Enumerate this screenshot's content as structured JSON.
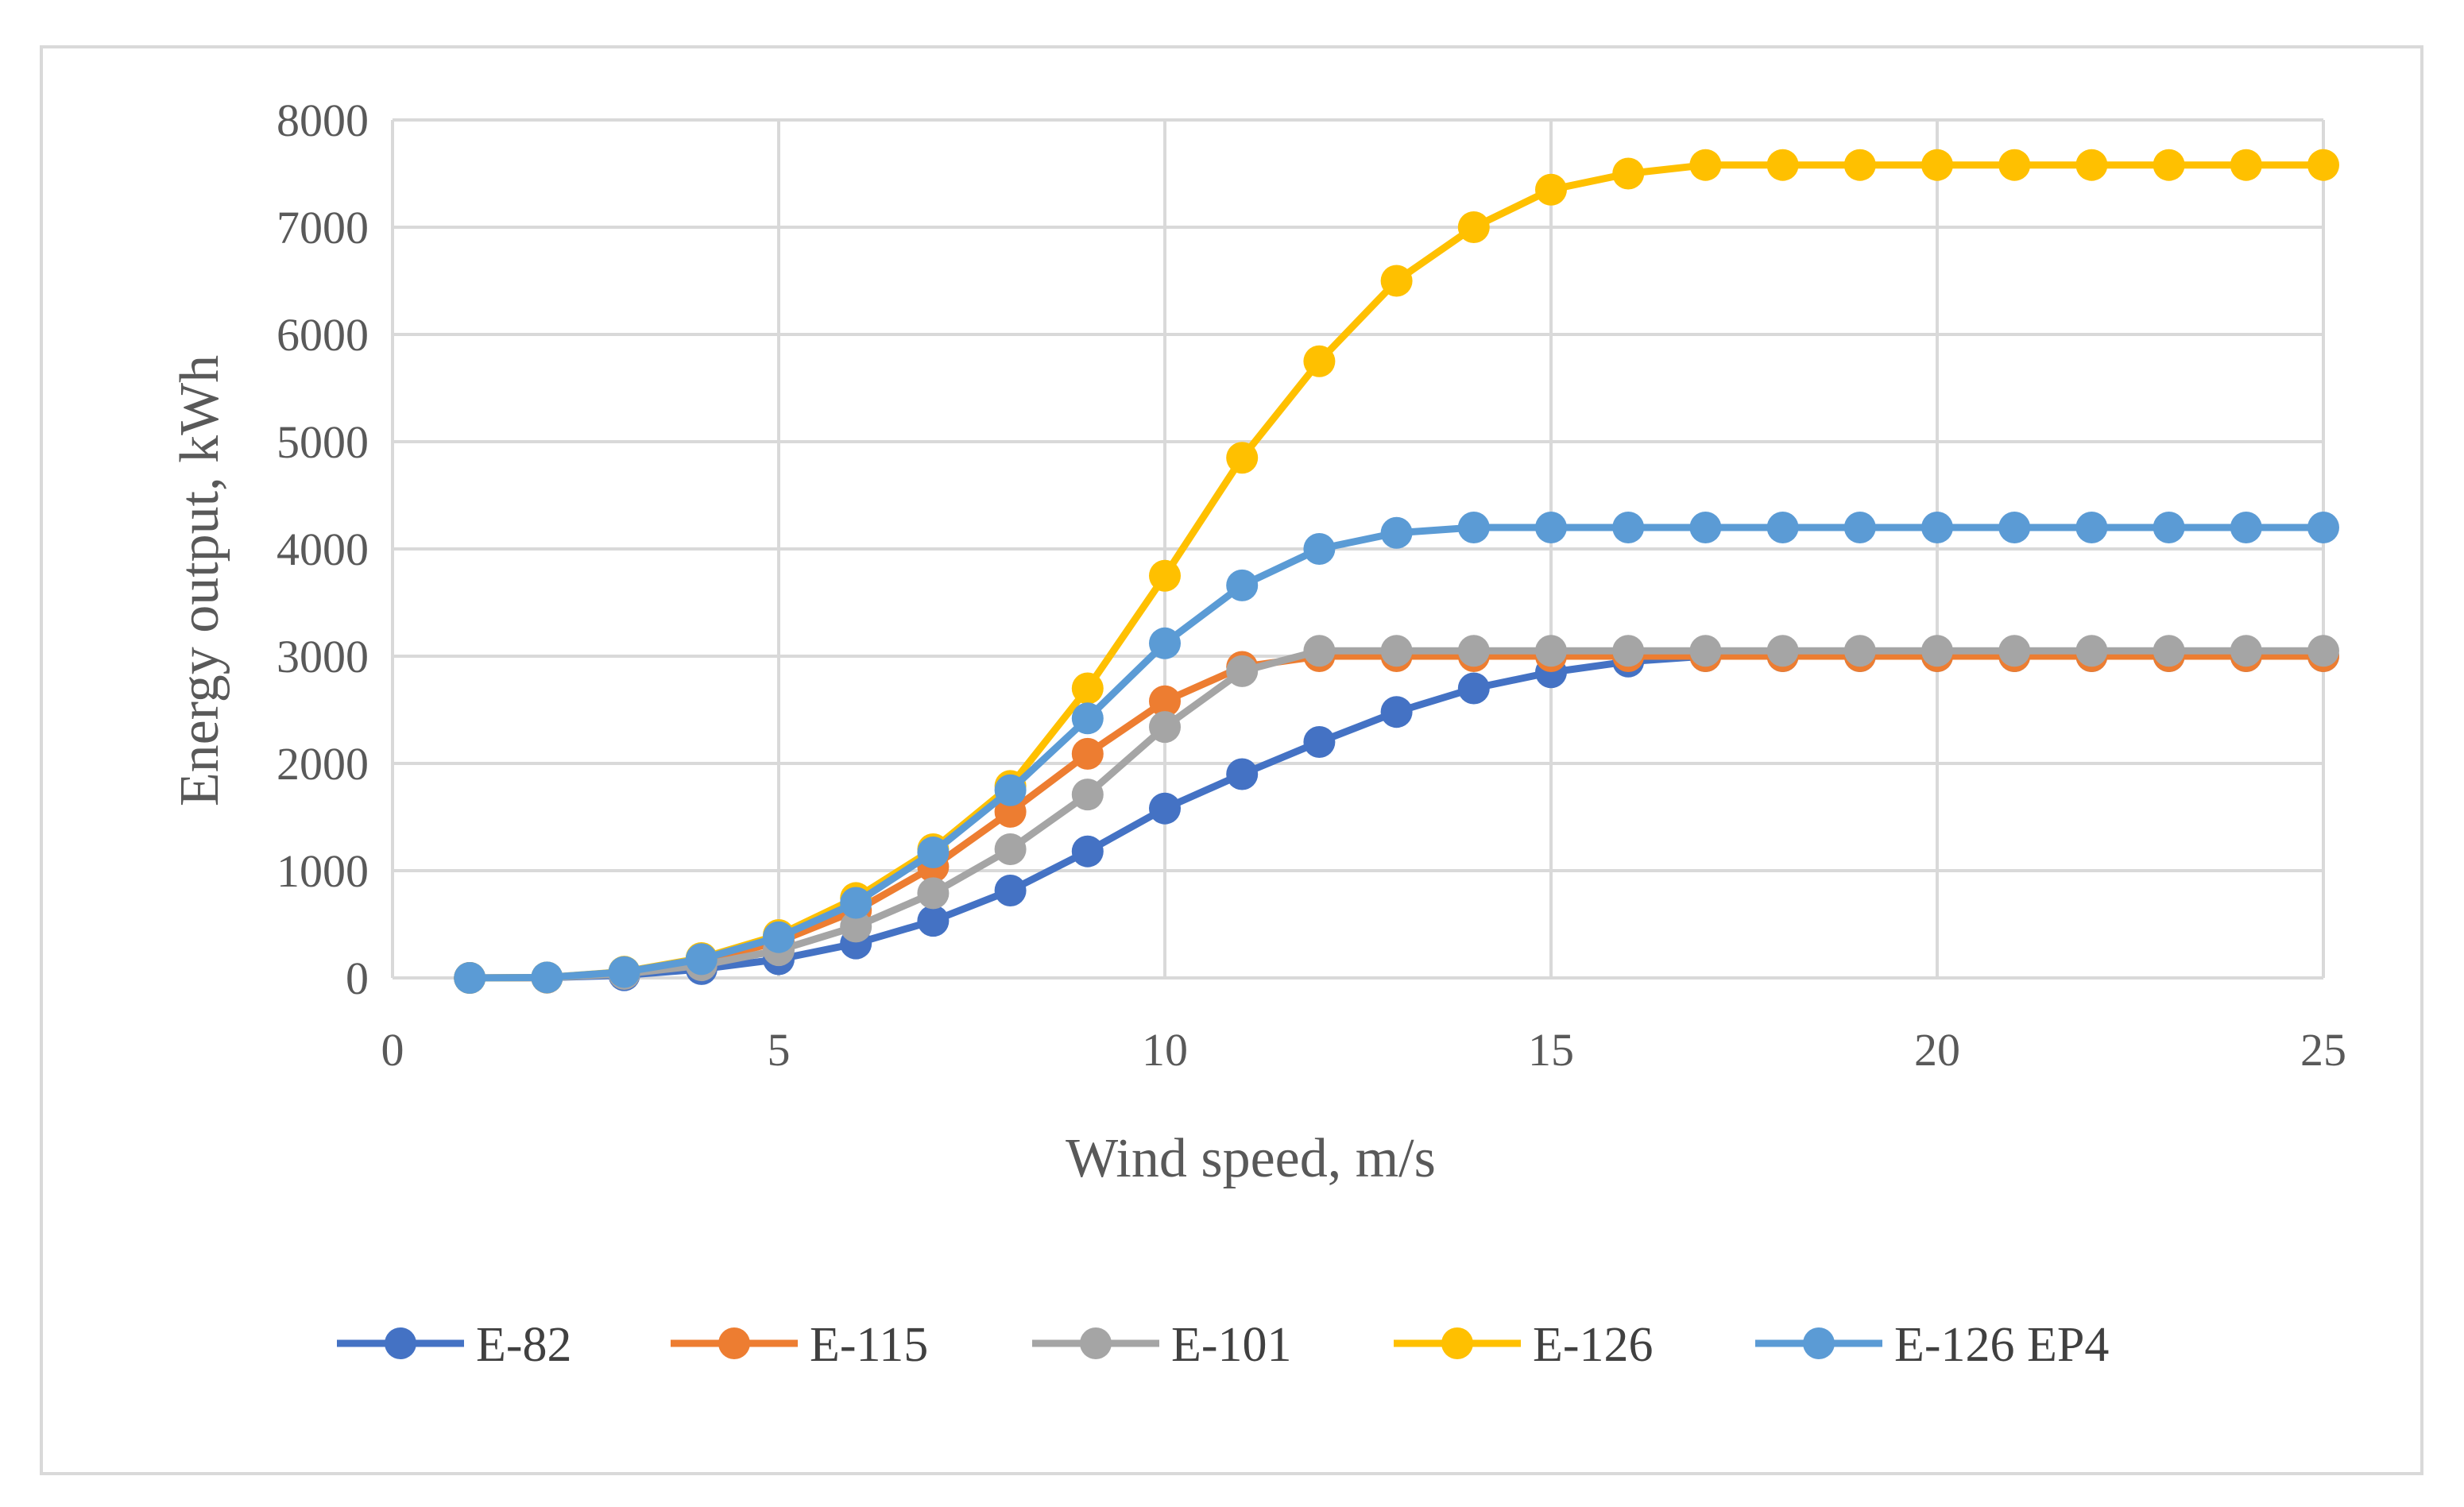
{
  "chart_data": {
    "type": "line",
    "title": "",
    "xlabel": "Wind speed, m/s",
    "ylabel": "Energy output, kWh",
    "xlim": [
      0,
      25
    ],
    "ylim": [
      0,
      8000
    ],
    "x_ticks": [
      0,
      5,
      10,
      15,
      20,
      25
    ],
    "y_ticks": [
      0,
      1000,
      2000,
      3000,
      4000,
      5000,
      6000,
      7000,
      8000
    ],
    "grid": true,
    "legend_position": "bottom",
    "x": [
      1,
      2,
      3,
      4,
      5,
      6,
      7,
      8,
      9,
      10,
      11,
      12,
      13,
      14,
      15,
      16,
      17,
      18,
      19,
      20,
      21,
      22,
      23,
      24,
      25
    ],
    "series": [
      {
        "name": "E-82",
        "color": "#4472c4",
        "values": [
          0,
          3,
          25,
          82,
          174,
          321,
          532,
          815,
          1180,
          1580,
          1900,
          2200,
          2480,
          2700,
          2850,
          2950,
          3000,
          3000,
          3000,
          3000,
          3000,
          3000,
          3000,
          3000,
          3000
        ]
      },
      {
        "name": "E-115",
        "color": "#ed7d31",
        "values": [
          0,
          3,
          48,
          155,
          339,
          628,
          1036,
          1549,
          2090,
          2580,
          2900,
          3000,
          3000,
          3000,
          3000,
          3000,
          3000,
          3000,
          3000,
          3000,
          3000,
          3000,
          3000,
          3000,
          3000
        ]
      },
      {
        "name": "E-101",
        "color": "#a5a5a5",
        "values": [
          0,
          3,
          37,
          118,
          258,
          479,
          790,
          1200,
          1710,
          2340,
          2860,
          3050,
          3050,
          3050,
          3050,
          3050,
          3050,
          3050,
          3050,
          3050,
          3050,
          3050,
          3050,
          3050,
          3050
        ]
      },
      {
        "name": "E-126",
        "color": "#ffc000",
        "values": [
          0,
          5,
          58,
          185,
          400,
          745,
          1200,
          1790,
          2700,
          3750,
          4850,
          5750,
          6500,
          7000,
          7350,
          7500,
          7580,
          7580,
          7580,
          7580,
          7580,
          7580,
          7580,
          7580,
          7580
        ]
      },
      {
        "name": "E-126 EP4",
        "color": "#5b9bd5",
        "values": [
          0,
          5,
          55,
          175,
          380,
          700,
          1170,
          1750,
          2420,
          3120,
          3660,
          4000,
          4150,
          4200,
          4200,
          4200,
          4200,
          4200,
          4200,
          4200,
          4200,
          4200,
          4200,
          4200,
          4200
        ]
      }
    ]
  }
}
